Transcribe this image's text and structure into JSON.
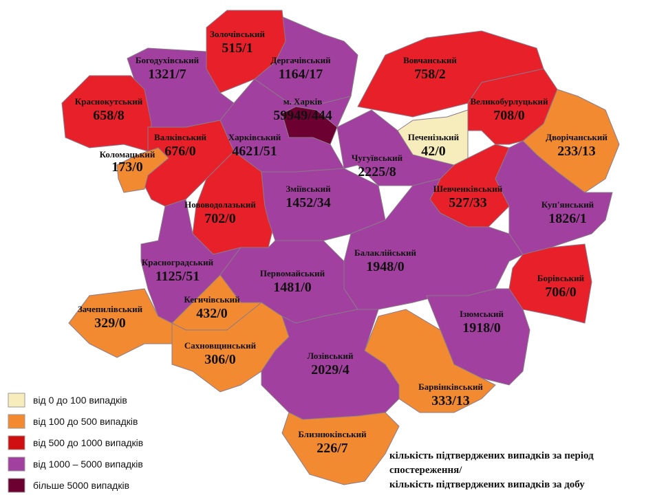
{
  "regions": [
    {
      "name": "Золочівський",
      "value": "515/1"
    },
    {
      "name": "Богодухівський",
      "value": "1321/7"
    },
    {
      "name": "Дергачівський",
      "value": "1164/17"
    },
    {
      "name": "Вовчанський",
      "value": "758/2"
    },
    {
      "name": "Краснокутський",
      "value": "658/8"
    },
    {
      "name": "м. Харків",
      "value": "59949/444"
    },
    {
      "name": "Великобурлуцький",
      "value": "708/0"
    },
    {
      "name": "Печенізький",
      "value": "42/0"
    },
    {
      "name": "Валківський",
      "value": "676/0"
    },
    {
      "name": "Харківський",
      "value": "4621/51"
    },
    {
      "name": "Коломацький",
      "value": "173/0"
    },
    {
      "name": "Дворічанський",
      "value": "233/13"
    },
    {
      "name": "Чугуївський",
      "value": "2225/8"
    },
    {
      "name": "Шевченківський",
      "value": "527/33"
    },
    {
      "name": "Зміївський",
      "value": "1452/34"
    },
    {
      "name": "Куп'янський",
      "value": "1826/1"
    },
    {
      "name": "Нововодолазький",
      "value": "702/0"
    },
    {
      "name": "Балаклійський",
      "value": "1948/0"
    },
    {
      "name": "Красноградський",
      "value": "1125/51"
    },
    {
      "name": "Первомайський",
      "value": "1481/0"
    },
    {
      "name": "Борівський",
      "value": "706/0"
    },
    {
      "name": "Кегичівський",
      "value": "432/0"
    },
    {
      "name": "Зачепилівський",
      "value": "329/0"
    },
    {
      "name": "Ізюмський",
      "value": "1918/0"
    },
    {
      "name": "Сахновщинський",
      "value": "306/0"
    },
    {
      "name": "Лозівський",
      "value": "2029/4"
    },
    {
      "name": "Барвінківський",
      "value": "333/13"
    },
    {
      "name": "Близнюківський",
      "value": "226/7"
    }
  ],
  "legend": [
    "від 0 до 100  випадків",
    "від 100 до 500  випадків",
    "від 500 до 1000  випадків",
    "від 1000 – 5000  випадків",
    "більше 5000  випадків"
  ],
  "note": [
    "кількість підтверджених випадків за період",
    "спостереження/",
    "кількість підтверджених випадків за добу"
  ]
}
